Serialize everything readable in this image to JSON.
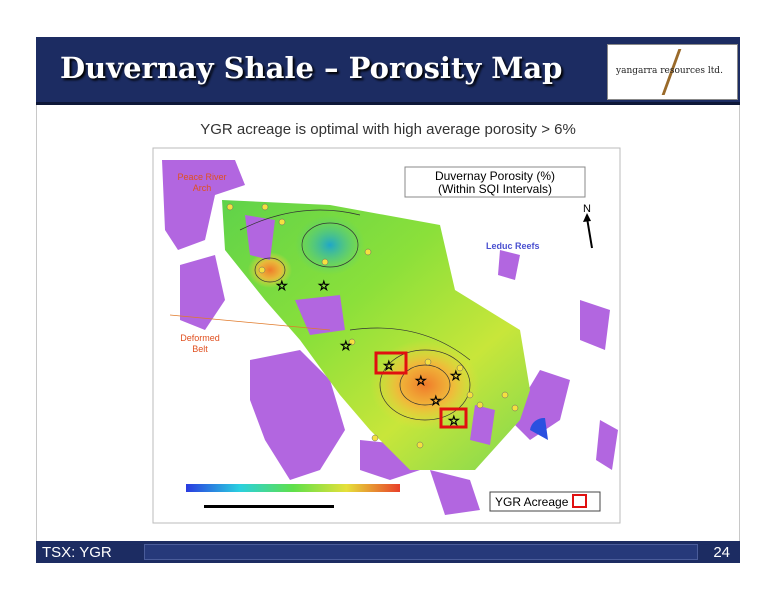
{
  "header": {
    "title": "Duvernay Shale – Porosity Map",
    "logo": "yangarra resources ltd."
  },
  "subtitle": "YGR acreage is optimal with high average porosity > 6%",
  "map": {
    "legend_title": [
      "Duvernay Porosity (%)",
      "(Within SQI Intervals)"
    ],
    "north": "N",
    "peace_river": [
      "Peace River",
      "Arch"
    ],
    "leduc": "Leduc Reefs",
    "deformed": [
      "Deformed",
      "Belt"
    ],
    "acreage": "YGR Acreage"
  },
  "footer": {
    "left": "TSX: YGR",
    "page": "24"
  }
}
